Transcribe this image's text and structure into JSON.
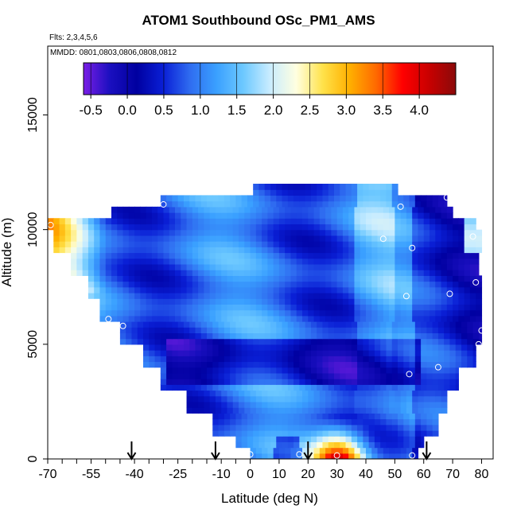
{
  "chart_data": {
    "type": "heatmap",
    "title": "ATOM1 Southbound OSc_PM1_AMS",
    "notes": [
      "Flts: 2,3,4,5,6",
      "MMDD: 0801,0803,0806,0808,0812"
    ],
    "xlabel": "Latitude (deg N)",
    "ylabel": "Altitude (m)",
    "xlim": [
      -70,
      84
    ],
    "ylim": [
      0,
      18000
    ],
    "x_ticks": [
      -70,
      -55,
      -40,
      -25,
      -10,
      0,
      10,
      20,
      30,
      40,
      50,
      60,
      70,
      80
    ],
    "x_tick_labels": [
      "-70",
      "-55",
      "-40",
      "-25",
      "-10",
      "0",
      "10",
      "20",
      "30",
      "40",
      "50",
      "60",
      "70",
      "80"
    ],
    "x_minor_ticks": [
      -65,
      -60,
      -50,
      -45,
      -35,
      -30,
      -20,
      -15,
      -5
    ],
    "y_ticks": [
      0,
      5000,
      10000,
      15000
    ],
    "y_tick_labels": [
      "0",
      "5000",
      "10000",
      "15000"
    ],
    "colorbar": {
      "ticks": [
        -0.5,
        0.0,
        0.5,
        1.0,
        1.5,
        2.0,
        2.5,
        3.0,
        3.5,
        4.0
      ],
      "tick_labels": [
        "-0.5",
        "0.0",
        "0.5",
        "1.0",
        "1.5",
        "2.0",
        "2.5",
        "3.0",
        "3.5",
        "4.0"
      ],
      "range": [
        -0.6,
        4.5
      ],
      "colors": [
        "#7a1ee6",
        "#1a0fbf",
        "#0000a0",
        "#0a1fd6",
        "#2f6cf0",
        "#3aa0ff",
        "#6cc8ff",
        "#c8ecff",
        "#ffffe0",
        "#ffe24a",
        "#ffb000",
        "#ff6a00",
        "#ff0000",
        "#c80000",
        "#8b0a0a"
      ]
    },
    "arrows_latitude": [
      -41,
      -12,
      20,
      61
    ],
    "profile_points": [
      {
        "lat": -69,
        "alt": 10200
      },
      {
        "lat": -49,
        "alt": 6100
      },
      {
        "lat": -44,
        "alt": 5800
      },
      {
        "lat": -30,
        "alt": 11100
      },
      {
        "lat": 0,
        "alt": 200
      },
      {
        "lat": 17,
        "alt": 200
      },
      {
        "lat": 30,
        "alt": 150
      },
      {
        "lat": 46,
        "alt": 9600
      },
      {
        "lat": 52,
        "alt": 11000
      },
      {
        "lat": 54,
        "alt": 7100
      },
      {
        "lat": 55,
        "alt": 3700
      },
      {
        "lat": 56,
        "alt": 9200
      },
      {
        "lat": 56,
        "alt": 150
      },
      {
        "lat": 65,
        "alt": 4000
      },
      {
        "lat": 68,
        "alt": 11400
      },
      {
        "lat": 69,
        "alt": 7200
      },
      {
        "lat": 77,
        "alt": 9700
      },
      {
        "lat": 78,
        "alt": 7700
      },
      {
        "lat": 79,
        "alt": 5000
      },
      {
        "lat": 80,
        "alt": 5600
      }
    ],
    "field_extent": [
      {
        "alt_min": 0,
        "alt_max": 500,
        "lat_min": 0,
        "lat_max": 58
      },
      {
        "alt_min": 500,
        "alt_max": 1000,
        "lat_min": -5,
        "lat_max": 60
      },
      {
        "alt_min": 1000,
        "alt_max": 2000,
        "lat_min": -13,
        "lat_max": 65
      },
      {
        "alt_min": 2000,
        "alt_max": 3000,
        "lat_min": -22,
        "lat_max": 68
      },
      {
        "alt_min": 3000,
        "alt_max": 4000,
        "lat_min": -31,
        "lat_max": 72
      },
      {
        "alt_min": 4000,
        "alt_max": 5000,
        "lat_min": -37,
        "lat_max": 78
      },
      {
        "alt_min": 5000,
        "alt_max": 6000,
        "lat_min": -45,
        "lat_max": 80
      },
      {
        "alt_min": 6000,
        "alt_max": 7000,
        "lat_min": -52,
        "lat_max": 80
      },
      {
        "alt_min": 7000,
        "alt_max": 8000,
        "lat_min": -56,
        "lat_max": 80
      },
      {
        "alt_min": 8000,
        "alt_max": 9000,
        "lat_min": -62,
        "lat_max": 79
      },
      {
        "alt_min": 9000,
        "alt_max": 10000,
        "lat_min": -68,
        "lat_max": 80
      },
      {
        "alt_min": 10000,
        "alt_max": 10500,
        "lat_min": -70,
        "lat_max": 78
      },
      {
        "alt_min": 10500,
        "alt_max": 11000,
        "lat_min": -48,
        "lat_max": 70
      },
      {
        "alt_min": 11000,
        "alt_max": 11500,
        "lat_min": -31,
        "lat_max": 68
      },
      {
        "alt_min": 11500,
        "alt_max": 12000,
        "lat_min": 1,
        "lat_max": 51
      }
    ]
  }
}
